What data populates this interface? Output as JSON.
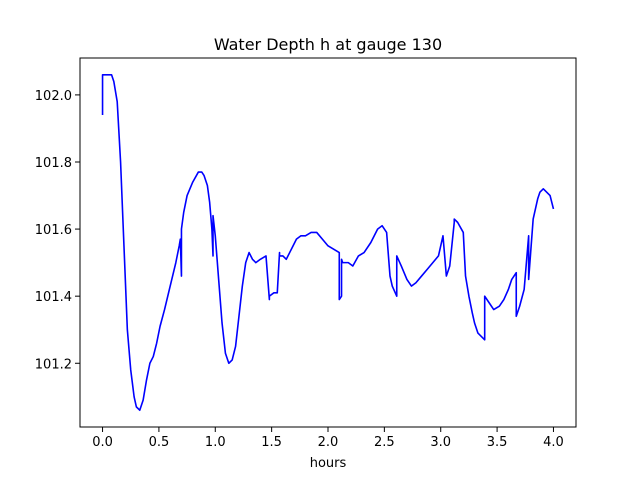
{
  "chart_data": {
    "type": "line",
    "title": "Water Depth h at gauge 130",
    "xlabel": "hours",
    "ylabel": "",
    "xlim": [
      -0.2,
      4.2
    ],
    "ylim": [
      101.01,
      102.11
    ],
    "xticks": [
      0.0,
      0.5,
      1.0,
      1.5,
      2.0,
      2.5,
      3.0,
      3.5,
      4.0
    ],
    "xtick_labels": [
      "0.0",
      "0.5",
      "1.0",
      "1.5",
      "2.0",
      "2.5",
      "3.0",
      "3.5",
      "4.0"
    ],
    "yticks": [
      101.2,
      101.4,
      101.6,
      101.8,
      102.0
    ],
    "ytick_labels": [
      "101.2",
      "101.4",
      "101.6",
      "101.8",
      "102.0"
    ],
    "grid": false,
    "legend": "none",
    "series": [
      {
        "color": "#0000ff",
        "x": [
          0.0,
          0.0,
          0.02,
          0.05,
          0.08,
          0.1,
          0.13,
          0.16,
          0.19,
          0.22,
          0.25,
          0.28,
          0.3,
          0.33,
          0.36,
          0.39,
          0.42,
          0.45,
          0.48,
          0.51,
          0.55,
          0.6,
          0.65,
          0.68,
          0.69,
          0.7,
          0.7,
          0.72,
          0.75,
          0.8,
          0.85,
          0.88,
          0.9,
          0.93,
          0.95,
          0.97,
          0.98,
          0.98,
          1.0,
          1.03,
          1.06,
          1.09,
          1.12,
          1.15,
          1.18,
          1.21,
          1.24,
          1.27,
          1.3,
          1.33,
          1.36,
          1.4,
          1.45,
          1.48,
          1.48,
          1.52,
          1.55,
          1.57,
          1.57,
          1.6,
          1.63,
          1.66,
          1.69,
          1.72,
          1.76,
          1.8,
          1.85,
          1.9,
          1.95,
          2.0,
          2.05,
          2.1,
          2.1,
          2.12,
          2.12,
          2.13,
          2.18,
          2.22,
          2.27,
          2.32,
          2.38,
          2.44,
          2.48,
          2.52,
          2.55,
          2.57,
          2.61,
          2.61,
          2.65,
          2.7,
          2.74,
          2.78,
          2.83,
          2.88,
          2.93,
          2.98,
          3.02,
          3.05,
          3.07,
          3.08,
          3.12,
          3.12,
          3.15,
          3.2,
          3.22,
          3.25,
          3.28,
          3.3,
          3.33,
          3.36,
          3.39,
          3.39,
          3.43,
          3.47,
          3.52,
          3.56,
          3.6,
          3.63,
          3.67,
          3.67,
          3.7,
          3.74,
          3.78,
          3.78,
          3.82,
          3.86,
          3.88,
          3.91,
          3.94,
          3.97,
          4.0
        ],
        "y": [
          101.94,
          102.06,
          102.06,
          102.06,
          102.06,
          102.04,
          101.98,
          101.8,
          101.55,
          101.3,
          101.18,
          101.1,
          101.07,
          101.06,
          101.09,
          101.15,
          101.2,
          101.22,
          101.26,
          101.31,
          101.36,
          101.43,
          101.5,
          101.55,
          101.57,
          101.46,
          101.6,
          101.65,
          101.7,
          101.74,
          101.77,
          101.77,
          101.76,
          101.73,
          101.68,
          101.6,
          101.52,
          101.64,
          101.58,
          101.45,
          101.32,
          101.23,
          101.2,
          101.21,
          101.25,
          101.34,
          101.43,
          101.5,
          101.53,
          101.51,
          101.5,
          101.51,
          101.52,
          101.39,
          101.4,
          101.41,
          101.41,
          101.53,
          101.52,
          101.52,
          101.51,
          101.53,
          101.55,
          101.57,
          101.58,
          101.58,
          101.59,
          101.59,
          101.57,
          101.55,
          101.54,
          101.53,
          101.39,
          101.4,
          101.51,
          101.5,
          101.5,
          101.49,
          101.52,
          101.53,
          101.56,
          101.6,
          101.61,
          101.59,
          101.46,
          101.43,
          101.4,
          101.52,
          101.49,
          101.45,
          101.43,
          101.44,
          101.46,
          101.48,
          101.5,
          101.52,
          101.58,
          101.46,
          101.48,
          101.49,
          101.62,
          101.63,
          101.62,
          101.59,
          101.46,
          101.4,
          101.35,
          101.32,
          101.29,
          101.28,
          101.27,
          101.4,
          101.38,
          101.36,
          101.37,
          101.39,
          101.42,
          101.45,
          101.47,
          101.34,
          101.37,
          101.42,
          101.58,
          101.45,
          101.63,
          101.69,
          101.71,
          101.72,
          101.71,
          101.7,
          101.66
        ]
      }
    ]
  }
}
